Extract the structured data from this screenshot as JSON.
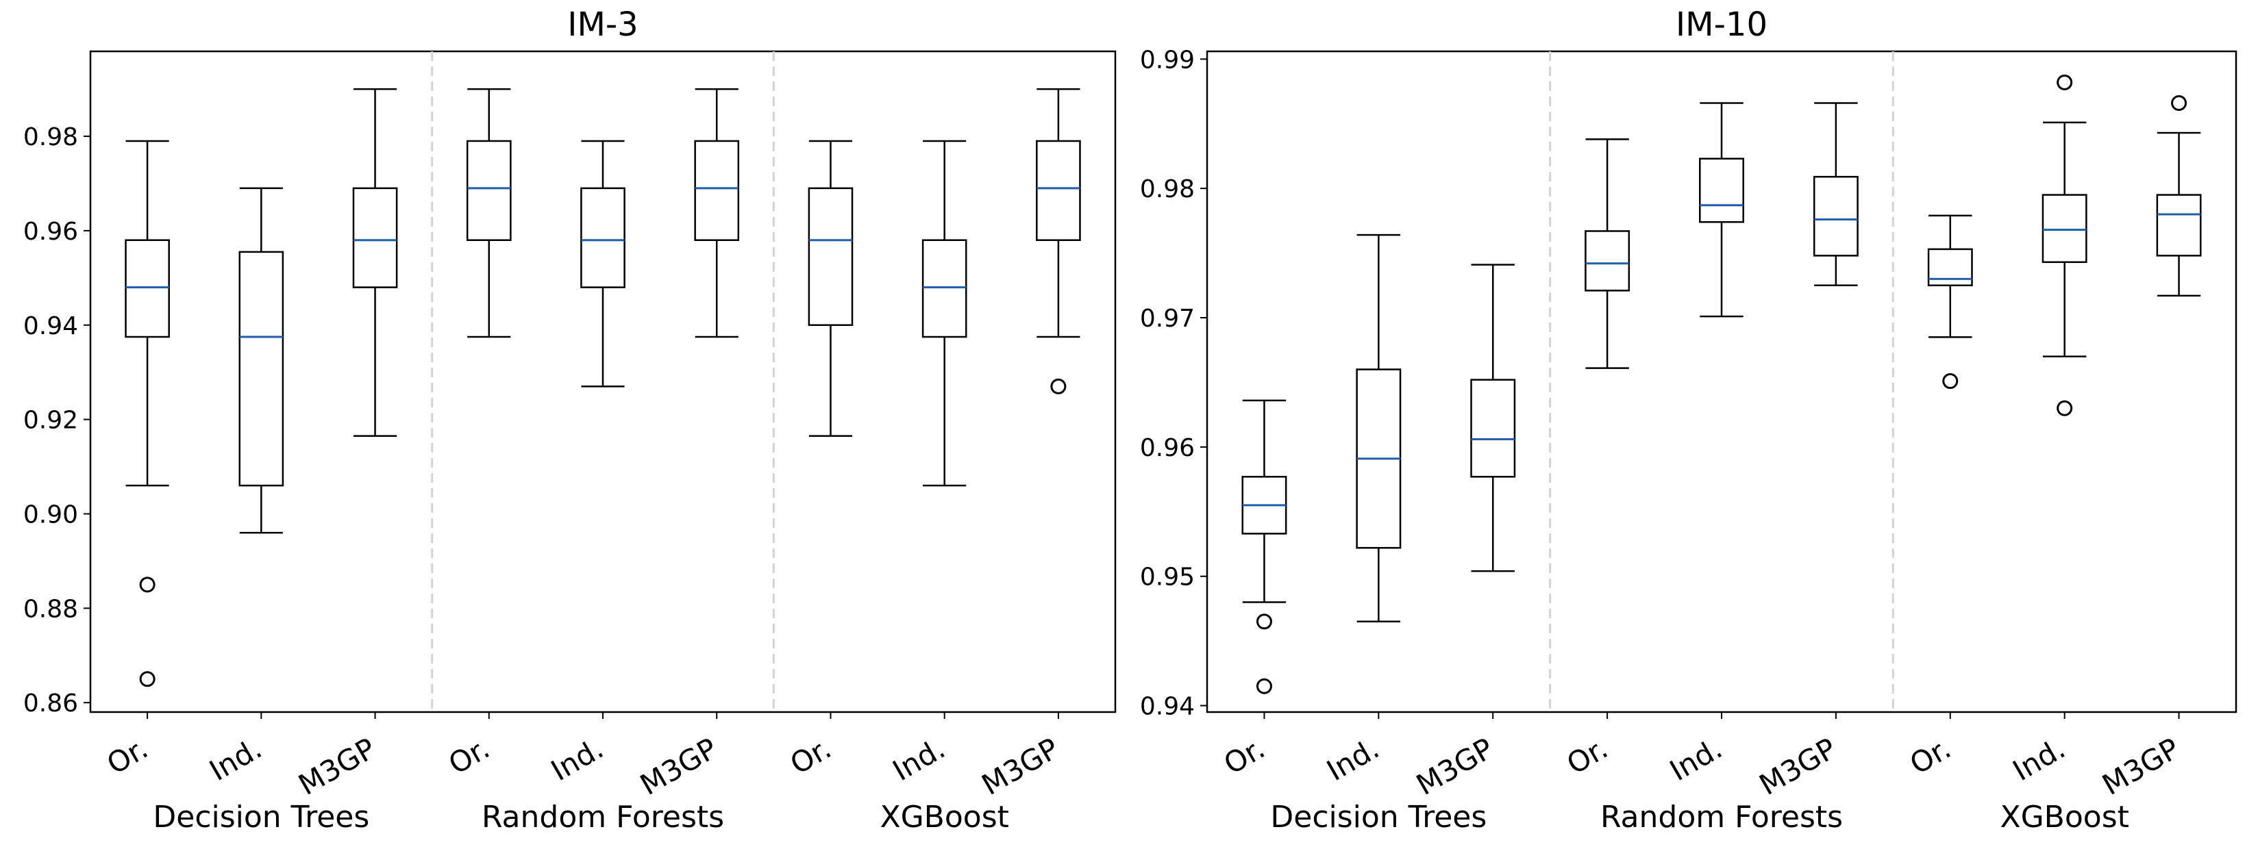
{
  "chart_data": [
    {
      "type": "boxplot",
      "title": "IM-3",
      "ylim": [
        0.858,
        0.998
      ],
      "yticks": [
        0.86,
        0.88,
        0.9,
        0.92,
        0.94,
        0.96,
        0.98
      ],
      "ytick_labels": [
        "0.86",
        "0.88",
        "0.90",
        "0.92",
        "0.94",
        "0.96",
        "0.98"
      ],
      "groups": [
        "Decision Trees",
        "Random Forests",
        "XGBoost"
      ],
      "boxes": [
        {
          "group": "Decision Trees",
          "label": "Or.",
          "whislo": 0.906,
          "q1": 0.9375,
          "median": 0.948,
          "q3": 0.958,
          "whishi": 0.979,
          "fliers": [
            0.885,
            0.865
          ]
        },
        {
          "group": "Decision Trees",
          "label": "Ind.",
          "whislo": 0.896,
          "q1": 0.906,
          "median": 0.9375,
          "q3": 0.9555,
          "whishi": 0.969,
          "fliers": []
        },
        {
          "group": "Decision Trees",
          "label": "M3GP",
          "whislo": 0.9165,
          "q1": 0.948,
          "median": 0.958,
          "q3": 0.969,
          "whishi": 0.99,
          "fliers": []
        },
        {
          "group": "Random Forests",
          "label": "Or.",
          "whislo": 0.9375,
          "q1": 0.958,
          "median": 0.969,
          "q3": 0.979,
          "whishi": 0.99,
          "fliers": []
        },
        {
          "group": "Random Forests",
          "label": "Ind.",
          "whislo": 0.927,
          "q1": 0.948,
          "median": 0.958,
          "q3": 0.969,
          "whishi": 0.979,
          "fliers": []
        },
        {
          "group": "Random Forests",
          "label": "M3GP",
          "whislo": 0.9375,
          "q1": 0.958,
          "median": 0.969,
          "q3": 0.979,
          "whishi": 0.99,
          "fliers": []
        },
        {
          "group": "XGBoost",
          "label": "Or.",
          "whislo": 0.9165,
          "q1": 0.94,
          "median": 0.958,
          "q3": 0.969,
          "whishi": 0.979,
          "fliers": []
        },
        {
          "group": "XGBoost",
          "label": "Ind.",
          "whislo": 0.906,
          "q1": 0.9375,
          "median": 0.948,
          "q3": 0.958,
          "whishi": 0.979,
          "fliers": []
        },
        {
          "group": "XGBoost",
          "label": "M3GP",
          "whislo": 0.9375,
          "q1": 0.958,
          "median": 0.969,
          "q3": 0.979,
          "whishi": 0.99,
          "fliers": [
            0.927
          ]
        }
      ]
    },
    {
      "type": "boxplot",
      "title": "IM-10",
      "ylim": [
        0.9395,
        0.9906
      ],
      "yticks": [
        0.94,
        0.95,
        0.96,
        0.97,
        0.98,
        0.99
      ],
      "ytick_labels": [
        "0.94",
        "0.95",
        "0.96",
        "0.97",
        "0.98",
        "0.99"
      ],
      "groups": [
        "Decision Trees",
        "Random Forests",
        "XGBoost"
      ],
      "boxes": [
        {
          "group": "Decision Trees",
          "label": "Or.",
          "whislo": 0.948,
          "q1": 0.9533,
          "median": 0.9555,
          "q3": 0.9577,
          "whishi": 0.9636,
          "fliers": [
            0.9465,
            0.9415
          ]
        },
        {
          "group": "Decision Trees",
          "label": "Ind.",
          "whislo": 0.9465,
          "q1": 0.9522,
          "median": 0.9591,
          "q3": 0.966,
          "whishi": 0.9764,
          "fliers": []
        },
        {
          "group": "Decision Trees",
          "label": "M3GP",
          "whislo": 0.9504,
          "q1": 0.9577,
          "median": 0.9606,
          "q3": 0.9652,
          "whishi": 0.9741,
          "fliers": []
        },
        {
          "group": "Random Forests",
          "label": "Or.",
          "whislo": 0.9661,
          "q1": 0.9721,
          "median": 0.9742,
          "q3": 0.9767,
          "whishi": 0.9838,
          "fliers": []
        },
        {
          "group": "Random Forests",
          "label": "Ind.",
          "whislo": 0.9701,
          "q1": 0.9774,
          "median": 0.9787,
          "q3": 0.9823,
          "whishi": 0.9866,
          "fliers": []
        },
        {
          "group": "Random Forests",
          "label": "M3GP",
          "whislo": 0.9725,
          "q1": 0.9748,
          "median": 0.9776,
          "q3": 0.9809,
          "whishi": 0.9866,
          "fliers": []
        },
        {
          "group": "XGBoost",
          "label": "Or.",
          "whislo": 0.9685,
          "q1": 0.9725,
          "median": 0.973,
          "q3": 0.9753,
          "whishi": 0.9779,
          "fliers": [
            0.9651
          ]
        },
        {
          "group": "XGBoost",
          "label": "Ind.",
          "whislo": 0.967,
          "q1": 0.9743,
          "median": 0.9768,
          "q3": 0.9795,
          "whishi": 0.9851,
          "fliers": [
            0.963,
            0.9882
          ]
        },
        {
          "group": "XGBoost",
          "label": "M3GP",
          "whislo": 0.9717,
          "q1": 0.9748,
          "median": 0.978,
          "q3": 0.9795,
          "whishi": 0.9843,
          "fliers": [
            0.9866
          ]
        }
      ]
    }
  ],
  "colors": {
    "box": "#000000",
    "median": "#1f5fae",
    "separator": "#d3d3d3"
  }
}
